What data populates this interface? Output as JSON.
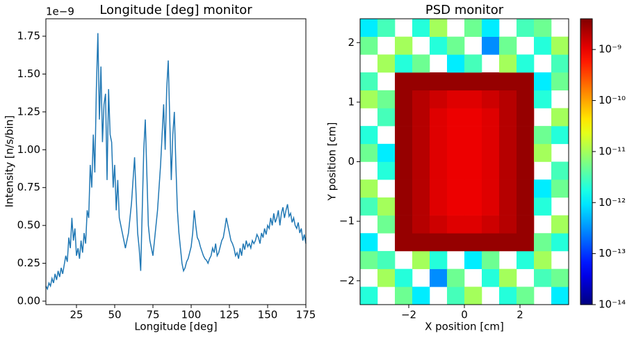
{
  "chart_data": [
    {
      "type": "line",
      "title": "Longitude [deg] monitor",
      "xlabel": "Longitude [deg]",
      "ylabel": "Intensity [n/s/bin]",
      "y_offset_label": "1e−9",
      "xlim": [
        5,
        175
      ],
      "xticks": [
        25,
        50,
        75,
        100,
        125,
        150,
        175
      ],
      "ylim": [
        -0.023,
        1.865
      ],
      "yticks": [
        {
          "value": 0,
          "label": "0.00"
        },
        0.25,
        {
          "value": 0.5,
          "label": "0.50"
        },
        0.75,
        {
          "value": 1,
          "label": "1.00"
        },
        1.25,
        {
          "value": 1.5,
          "label": "1.50"
        },
        1.75
      ],
      "x": [
        5,
        6,
        7,
        8,
        9,
        10,
        11,
        12,
        13,
        14,
        15,
        16,
        17,
        18,
        19,
        20,
        21,
        22,
        23,
        24,
        25,
        26,
        27,
        28,
        29,
        30,
        31,
        32,
        33,
        34,
        35,
        36,
        37,
        38,
        39,
        40,
        41,
        42,
        43,
        44,
        45,
        46,
        47,
        48,
        49,
        50,
        51,
        52,
        53,
        54,
        55,
        56,
        57,
        58,
        59,
        60,
        61,
        62,
        63,
        64,
        65,
        66,
        67,
        68,
        69,
        70,
        71,
        72,
        73,
        74,
        75,
        76,
        77,
        78,
        79,
        80,
        81,
        82,
        83,
        84,
        85,
        86,
        87,
        88,
        89,
        90,
        91,
        92,
        93,
        94,
        95,
        96,
        97,
        98,
        99,
        100,
        101,
        102,
        103,
        104,
        105,
        106,
        107,
        108,
        109,
        110,
        111,
        112,
        113,
        114,
        115,
        116,
        117,
        118,
        119,
        120,
        121,
        122,
        123,
        124,
        125,
        126,
        127,
        128,
        129,
        130,
        131,
        132,
        133,
        134,
        135,
        136,
        137,
        138,
        139,
        140,
        141,
        142,
        143,
        144,
        145,
        146,
        147,
        148,
        149,
        150,
        151,
        152,
        153,
        154,
        155,
        156,
        157,
        158,
        159,
        160,
        161,
        162,
        163,
        164,
        165,
        166,
        167,
        168,
        169,
        170,
        171,
        172,
        173,
        174,
        175
      ],
      "series": [
        {
          "color": "#1f77b4",
          "values": [
            0.1,
            0.08,
            0.12,
            0.1,
            0.15,
            0.12,
            0.18,
            0.14,
            0.2,
            0.16,
            0.22,
            0.18,
            0.24,
            0.3,
            0.26,
            0.42,
            0.35,
            0.55,
            0.4,
            0.48,
            0.3,
            0.35,
            0.28,
            0.4,
            0.32,
            0.45,
            0.38,
            0.6,
            0.55,
            0.9,
            0.75,
            1.1,
            0.85,
            1.4,
            1.77,
            1.2,
            1.55,
            1.05,
            1.3,
            1.37,
            0.8,
            1.4,
            1.1,
            1.05,
            0.75,
            0.9,
            0.6,
            0.8,
            0.55,
            0.5,
            0.45,
            0.4,
            0.35,
            0.4,
            0.45,
            0.55,
            0.65,
            0.8,
            0.95,
            0.7,
            0.45,
            0.35,
            0.2,
            0.6,
            1.0,
            1.2,
            0.85,
            0.5,
            0.4,
            0.35,
            0.3,
            0.4,
            0.5,
            0.6,
            0.75,
            0.9,
            1.1,
            1.3,
            1.0,
            1.4,
            1.59,
            1.2,
            0.8,
            1.1,
            1.25,
            0.9,
            0.6,
            0.45,
            0.35,
            0.25,
            0.2,
            0.22,
            0.26,
            0.28,
            0.32,
            0.36,
            0.45,
            0.6,
            0.5,
            0.42,
            0.4,
            0.36,
            0.33,
            0.3,
            0.28,
            0.27,
            0.25,
            0.28,
            0.3,
            0.35,
            0.32,
            0.38,
            0.3,
            0.32,
            0.36,
            0.4,
            0.42,
            0.48,
            0.55,
            0.5,
            0.45,
            0.4,
            0.38,
            0.35,
            0.3,
            0.32,
            0.28,
            0.35,
            0.3,
            0.38,
            0.34,
            0.4,
            0.36,
            0.38,
            0.35,
            0.4,
            0.38,
            0.4,
            0.44,
            0.42,
            0.38,
            0.45,
            0.42,
            0.48,
            0.44,
            0.5,
            0.48,
            0.55,
            0.5,
            0.58,
            0.52,
            0.55,
            0.6,
            0.5,
            0.58,
            0.62,
            0.55,
            0.6,
            0.64,
            0.56,
            0.58,
            0.52,
            0.55,
            0.5,
            0.48,
            0.52,
            0.45,
            0.48,
            0.4,
            0.44,
            0.38
          ]
        }
      ]
    },
    {
      "type": "heatmap",
      "title": "PSD monitor",
      "xlabel": "X position [cm]",
      "ylabel": "Y position [cm]",
      "colormap": "jet",
      "log_color": true,
      "xlim": [
        -3.75,
        3.75
      ],
      "xticks": [
        {
          "value": -2,
          "label": "−2"
        },
        0,
        2
      ],
      "ylim": [
        -2.4,
        2.4
      ],
      "yticks": [
        {
          "value": -2,
          "label": "−2"
        },
        {
          "value": -1,
          "label": "−1"
        },
        0,
        1,
        2
      ],
      "clim": [
        1e-14,
        4e-09
      ],
      "cticks": [
        {
          "value": 1e-14,
          "label": "10⁻¹⁴"
        },
        {
          "value": 1e-13,
          "label": "10⁻¹³"
        },
        {
          "value": 1e-12,
          "label": "10⁻¹²"
        },
        {
          "value": 1e-11,
          "label": "10⁻¹¹"
        },
        {
          "value": 1e-10,
          "label": "10⁻¹⁰"
        },
        {
          "value": 1e-09,
          "label": "10⁻⁹"
        }
      ],
      "z": [
        [
          2e-12,
          null,
          5e-12,
          1e-12,
          null,
          3e-12,
          1e-11,
          null,
          2e-12,
          5e-12,
          null,
          1e-12
        ],
        [
          null,
          1e-11,
          2e-12,
          null,
          3e-13,
          5e-12,
          null,
          2e-12,
          1e-11,
          null,
          3e-12,
          5e-12
        ],
        [
          5e-12,
          3e-12,
          null,
          1e-11,
          2e-12,
          null,
          1e-12,
          5e-12,
          null,
          2e-12,
          1e-11,
          null
        ],
        [
          1e-12,
          null,
          3e-09,
          3e-09,
          3e-09,
          3e-09,
          3e-09,
          3e-09,
          3e-09,
          3e-09,
          5e-12,
          2e-12
        ],
        [
          null,
          5e-12,
          3e-09,
          2e-09,
          1.5e-09,
          1.2e-09,
          1.2e-09,
          1.5e-09,
          2e-09,
          3e-09,
          null,
          1e-11
        ],
        [
          3e-12,
          1e-11,
          3e-09,
          2e-09,
          1.2e-09,
          1e-09,
          1e-09,
          1.2e-09,
          2e-09,
          3e-09,
          2e-12,
          null
        ],
        [
          1e-11,
          null,
          3e-09,
          2e-09,
          1.2e-09,
          1e-09,
          1e-09,
          1.2e-09,
          2e-09,
          3e-09,
          1e-12,
          5e-12
        ],
        [
          null,
          2e-12,
          3e-09,
          2e-09,
          1.2e-09,
          1e-09,
          1e-09,
          1.2e-09,
          2e-09,
          3e-09,
          null,
          3e-12
        ],
        [
          5e-12,
          1e-12,
          3e-09,
          2e-09,
          1.2e-09,
          1e-09,
          1e-09,
          1.2e-09,
          2e-09,
          3e-09,
          1e-11,
          null
        ],
        [
          2e-12,
          null,
          3e-09,
          2e-09,
          1.2e-09,
          1e-09,
          1e-09,
          1.2e-09,
          2e-09,
          3e-09,
          5e-12,
          2e-12
        ],
        [
          null,
          3e-12,
          3e-09,
          2e-09,
          1.2e-09,
          1e-09,
          1e-09,
          1.2e-09,
          2e-09,
          3e-09,
          null,
          1e-11
        ],
        [
          1e-11,
          5e-12,
          3e-09,
          2e-09,
          1.5e-09,
          1.2e-09,
          1.2e-09,
          1.5e-09,
          2e-09,
          3e-09,
          2e-12,
          null
        ],
        [
          3e-12,
          null,
          3e-09,
          3e-09,
          3e-09,
          3e-09,
          3e-09,
          3e-09,
          3e-09,
          3e-09,
          1e-12,
          5e-12
        ],
        [
          null,
          1e-11,
          2e-12,
          5e-12,
          null,
          1e-12,
          3e-12,
          null,
          1e-11,
          2e-12,
          null,
          3e-12
        ],
        [
          5e-12,
          null,
          1e-11,
          null,
          2e-12,
          5e-12,
          null,
          3e-13,
          5e-12,
          null,
          2e-12,
          1e-11
        ],
        [
          1e-12,
          3e-12,
          null,
          2e-12,
          1e-11,
          null,
          5e-12,
          1e-12,
          null,
          3e-12,
          5e-12,
          null
        ]
      ]
    }
  ]
}
